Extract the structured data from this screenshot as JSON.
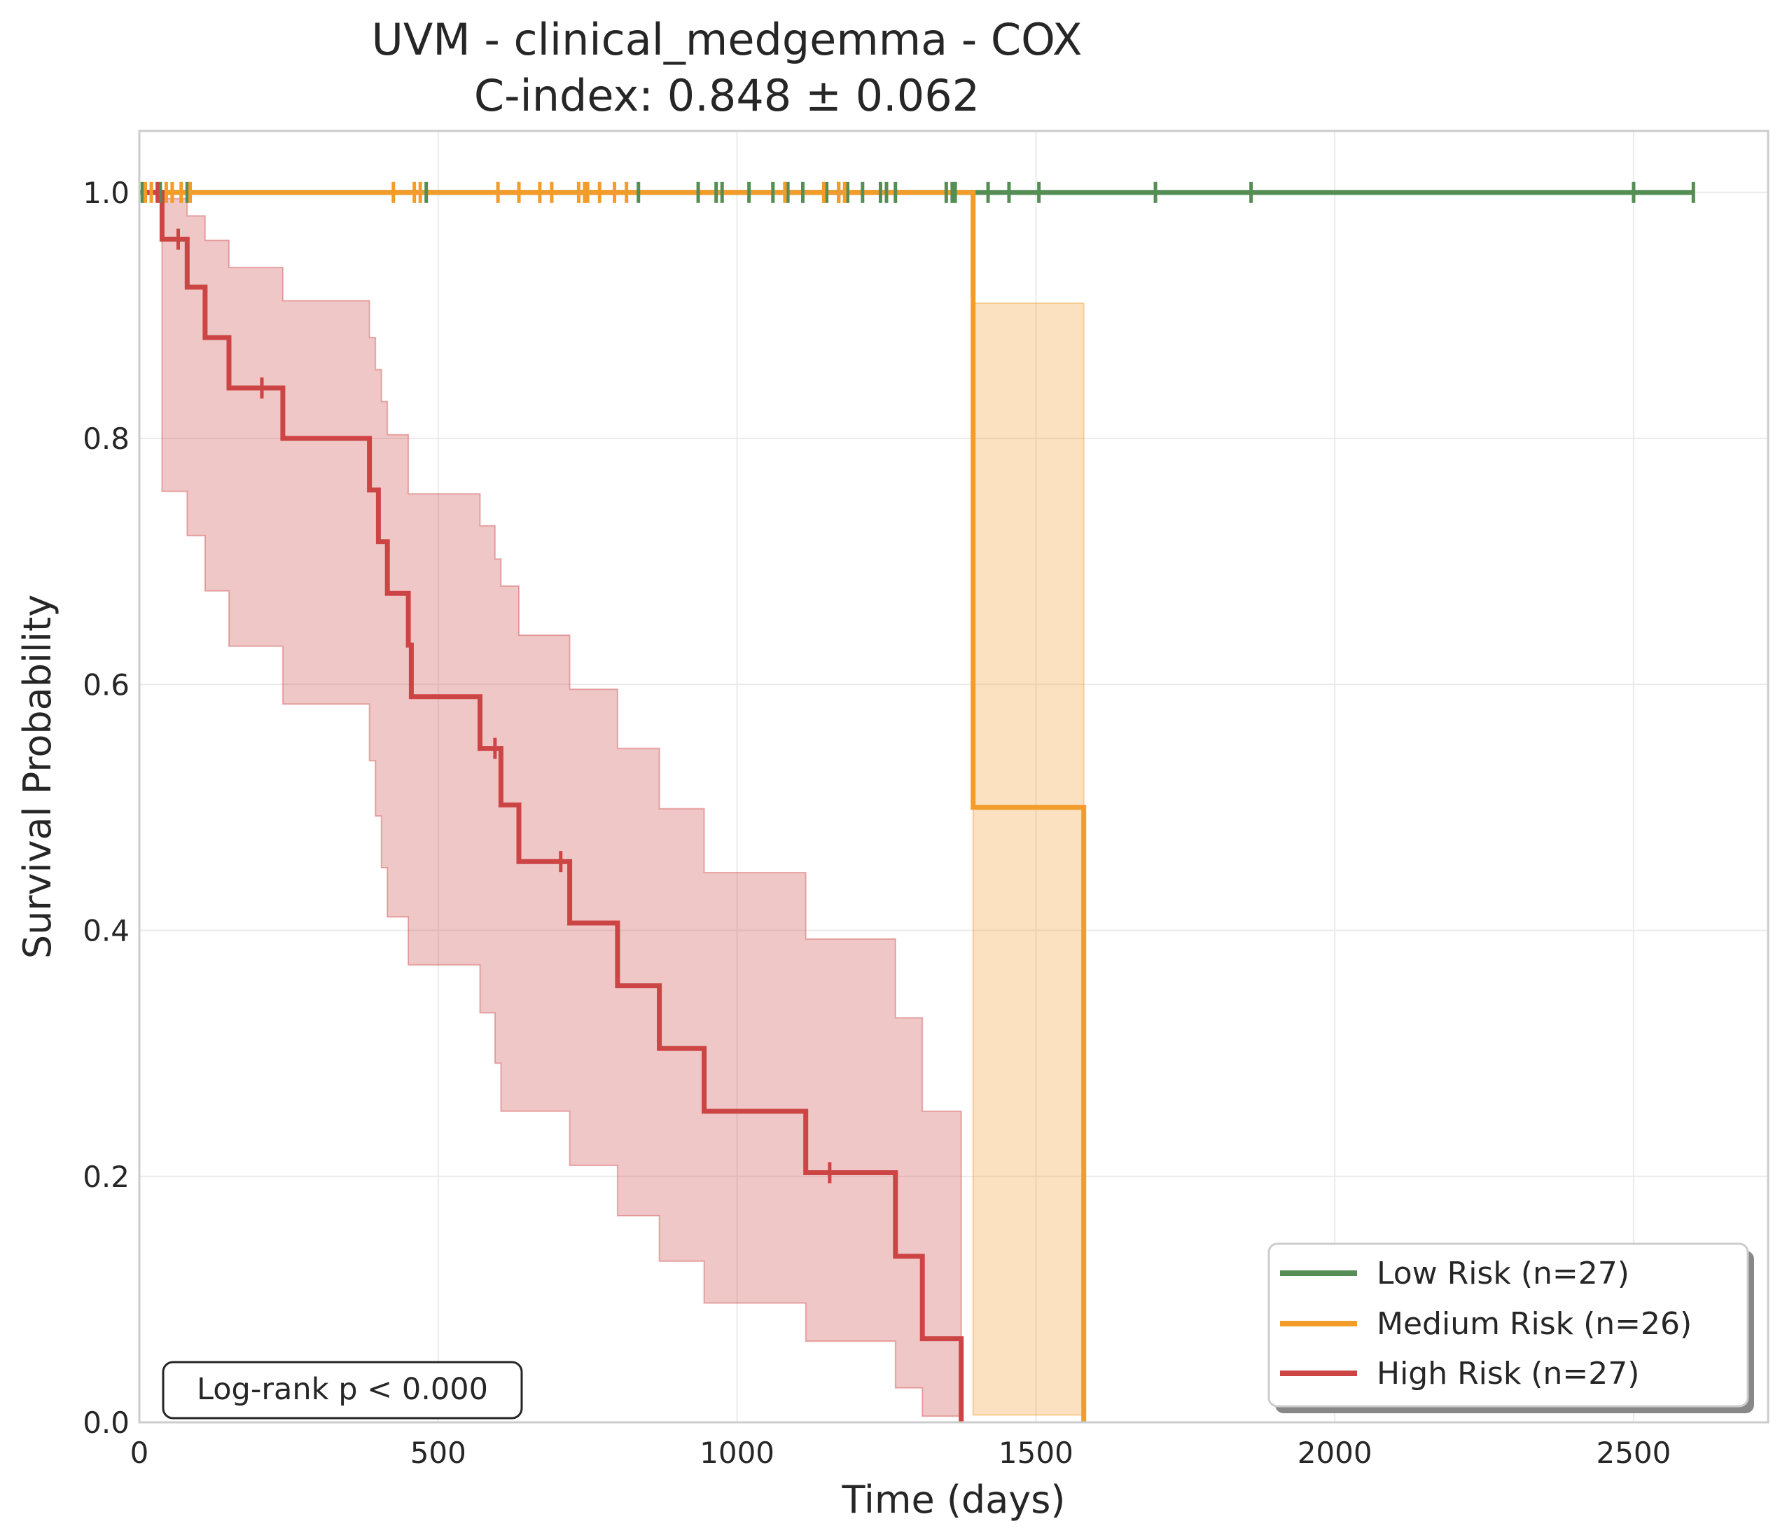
{
  "chart_data": {
    "type": "line",
    "title_line1": "UVM - clinical_medgemma - COX",
    "title_line2": "C-index: 0.848 ± 0.062",
    "xlabel": "Time (days)",
    "ylabel": "Survival Probability",
    "xlim": [
      0,
      2725
    ],
    "ylim": [
      0,
      1.05
    ],
    "xticks": [
      0,
      500,
      1000,
      1500,
      2000,
      2500
    ],
    "xtick_labels": [
      "0",
      "500",
      "1000",
      "1500",
      "2000",
      "2500"
    ],
    "yticks": [
      0.0,
      0.2,
      0.4,
      0.6,
      0.8,
      1.0
    ],
    "ytick_labels": [
      "0.0",
      "0.2",
      "0.4",
      "0.6",
      "0.8",
      "1.0"
    ],
    "grid": true,
    "legend_position": "lower right",
    "annotation": "Log-rank p < 0.000",
    "series": [
      {
        "name": "Low Risk (n=27)",
        "color": "#548e55",
        "x": [
          0,
          2600
        ],
        "y": [
          1.0,
          1.0
        ],
        "censor_times": [
          5,
          35,
          80,
          480,
          835,
          935,
          965,
          975,
          1020,
          1060,
          1085,
          1110,
          1150,
          1170,
          1185,
          1210,
          1240,
          1250,
          1265,
          1350,
          1360,
          1365,
          1420,
          1455,
          1505,
          1700,
          1860,
          2500,
          2600
        ],
        "ci_x": [],
        "ci_lower": [],
        "ci_upper": []
      },
      {
        "name": "Medium Risk (n=26)",
        "color": "#f39c2a",
        "x": [
          0,
          1395,
          1395,
          1580,
          1580
        ],
        "y": [
          1.0,
          1.0,
          0.5,
          0.5,
          0.0
        ],
        "censor_times": [
          10,
          20,
          45,
          55,
          70,
          85,
          425,
          460,
          470,
          600,
          635,
          670,
          690,
          735,
          745,
          750,
          770,
          795,
          815,
          1080,
          1145,
          1170,
          1180
        ],
        "ci_x": [
          1395,
          1580
        ],
        "ci_lower": [
          0.006,
          0.006
        ],
        "ci_upper": [
          0.91,
          0.91
        ]
      },
      {
        "name": "High Risk (n=27)",
        "color": "#cc4444",
        "x": [
          0,
          38,
          38,
          80,
          80,
          110,
          110,
          150,
          150,
          240,
          240,
          385,
          385,
          400,
          400,
          415,
          415,
          450,
          450,
          455,
          455,
          570,
          570,
          605,
          605,
          635,
          635,
          720,
          720,
          800,
          800,
          870,
          870,
          945,
          945,
          1115,
          1115,
          1265,
          1265,
          1310,
          1310,
          1375,
          1375
        ],
        "y": [
          1.0,
          1.0,
          0.962,
          0.962,
          0.923,
          0.923,
          0.882,
          0.882,
          0.841,
          0.841,
          0.8,
          0.8,
          0.758,
          0.758,
          0.716,
          0.716,
          0.674,
          0.674,
          0.632,
          0.632,
          0.59,
          0.59,
          0.548,
          0.548,
          0.502,
          0.502,
          0.456,
          0.456,
          0.406,
          0.406,
          0.355,
          0.355,
          0.304,
          0.304,
          0.253,
          0.253,
          0.203,
          0.203,
          0.135,
          0.135,
          0.068,
          0.068,
          0.0
        ],
        "censor_times": [
          30,
          65,
          205,
          595,
          705,
          1155
        ],
        "ci_x": [
          38,
          80,
          110,
          150,
          240,
          385,
          395,
          405,
          415,
          450,
          455,
          570,
          595,
          605,
          635,
          720,
          800,
          870,
          945,
          1115,
          1265,
          1310,
          1375
        ],
        "ci_lower": [
          0.757,
          0.721,
          0.676,
          0.631,
          0.584,
          0.538,
          0.493,
          0.451,
          0.411,
          0.372,
          0.372,
          0.333,
          0.292,
          0.253,
          0.253,
          0.209,
          0.168,
          0.131,
          0.097,
          0.066,
          0.028,
          0.005,
          0.005
        ],
        "ci_upper": [
          0.995,
          0.981,
          0.961,
          0.939,
          0.912,
          0.882,
          0.856,
          0.83,
          0.803,
          0.755,
          0.755,
          0.729,
          0.702,
          0.68,
          0.64,
          0.596,
          0.548,
          0.499,
          0.447,
          0.393,
          0.329,
          0.253,
          0.253
        ]
      }
    ]
  }
}
